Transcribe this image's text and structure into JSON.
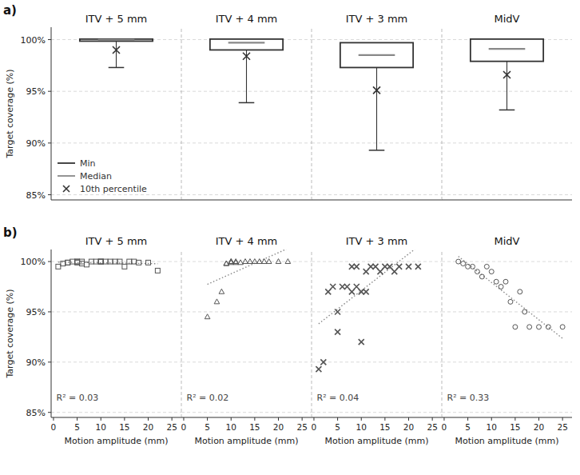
{
  "chart_data": [
    {
      "type": "box",
      "title": "a)",
      "categories": [
        "ITV + 5 mm",
        "ITV + 4 mm",
        "ITV + 3 mm",
        "MidV"
      ],
      "ylabel": "Target coverage (%)",
      "ylim": [
        84.5,
        101.2
      ],
      "yticks": [
        {
          "value": 85,
          "label": "85%"
        },
        {
          "value": 90,
          "label": "90%"
        },
        {
          "value": 95,
          "label": "95%"
        },
        {
          "value": 100,
          "label": "100%"
        }
      ],
      "grid": true,
      "legend": "lower left",
      "color": "#333333",
      "q1": [
        99.85,
        99.0,
        97.3,
        97.9
      ],
      "q3": [
        100.05,
        100.05,
        99.7,
        100.05
      ],
      "series": [
        {
          "name": "Min",
          "values": [
            97.3,
            93.9,
            89.3,
            93.2
          ],
          "color": "#333333"
        },
        {
          "name": "Median",
          "values": [
            99.97,
            99.7,
            98.5,
            99.1
          ],
          "color": "#888888"
        },
        {
          "name": "10th percentile",
          "values": [
            99.0,
            98.4,
            95.1,
            96.6
          ],
          "color": "#333333",
          "marker": "x"
        }
      ]
    },
    {
      "type": "scatter",
      "title": "b)",
      "categories": [
        "ITV + 5 mm",
        "ITV + 4 mm",
        "ITV + 3 mm",
        "MidV"
      ],
      "xlabel": "Motion amplitude (mm)",
      "ylabel": "Target coverage (%)",
      "xlim": [
        -0.5,
        27
      ],
      "xticks": [
        0,
        5,
        10,
        15,
        20,
        25
      ],
      "ylim": [
        84.5,
        101.2
      ],
      "yticks": [
        {
          "value": 85,
          "label": "85%"
        },
        {
          "value": 90,
          "label": "90%"
        },
        {
          "value": 95,
          "label": "95%"
        },
        {
          "value": 100,
          "label": "100%"
        }
      ],
      "grid": true,
      "color": "#333333",
      "series": [
        {
          "x": [
            1,
            2,
            3,
            3,
            4,
            5,
            5,
            5,
            6,
            6,
            7,
            8,
            9,
            10,
            10,
            10,
            11,
            12,
            13,
            14,
            15,
            16,
            17,
            18,
            20,
            22
          ],
          "values": [
            99.5,
            99.8,
            99.9,
            99.9,
            100.0,
            100.0,
            100.0,
            99.9,
            99.8,
            100.0,
            99.7,
            100.0,
            100.0,
            100.0,
            100.0,
            100.0,
            100.0,
            100.0,
            100.0,
            100.0,
            99.5,
            100.0,
            100.0,
            99.9,
            99.9,
            99.1
          ],
          "marker": "square",
          "color": "#555555",
          "annotation": "R² = 0.03",
          "trend": {
            "x": [
              1,
              22
            ],
            "values": [
              99.946,
              99.788
            ],
            "color": "#888888",
            "line_style": "dotted"
          }
        },
        {
          "x": [
            5,
            7,
            8,
            9,
            9,
            10,
            10,
            10,
            11,
            11,
            12,
            13,
            14,
            15,
            16,
            17,
            18,
            20,
            22
          ],
          "values": [
            94.5,
            96.0,
            97.0,
            99.8,
            99.8,
            100.0,
            100.0,
            99.9,
            99.9,
            100.0,
            99.9,
            100.0,
            100.0,
            100.0,
            100.0,
            100.0,
            100.0,
            100.0,
            100.0
          ],
          "marker": "triangle",
          "color": "#555555",
          "annotation": "R² = 0.02",
          "trend": {
            "x": [
              5,
              22
            ],
            "values": [
              97.736,
              101.305
            ],
            "color": "#888888",
            "line_style": "dotted"
          }
        },
        {
          "x": [
            1,
            2,
            3,
            4,
            5,
            5,
            6,
            7,
            8,
            8,
            9,
            9,
            10,
            10,
            11,
            11,
            12,
            13,
            14,
            15,
            16,
            17,
            18,
            20,
            22
          ],
          "values": [
            89.3,
            90.0,
            97.0,
            97.5,
            93.0,
            95.0,
            97.5,
            97.5,
            97.0,
            99.5,
            97.5,
            99.5,
            97.0,
            92.0,
            99.0,
            97.0,
            99.5,
            99.5,
            99.0,
            99.5,
            99.5,
            99.0,
            99.5,
            99.5,
            99.5
          ],
          "marker": "x",
          "color": "#555555",
          "annotation": "R² = 0.04",
          "trend": {
            "x": [
              1,
              22
            ],
            "values": [
              93.816,
              101.489
            ],
            "color": "#888888",
            "line_style": "dotted"
          }
        },
        {
          "x": [
            3,
            4,
            5,
            6,
            7,
            8,
            9,
            10,
            11,
            12,
            13,
            14,
            15,
            16,
            17,
            18,
            20,
            22,
            25
          ],
          "values": [
            100.0,
            99.8,
            99.5,
            99.5,
            99.0,
            98.5,
            99.5,
            99.0,
            98.0,
            97.5,
            98.0,
            96.0,
            93.5,
            97.0,
            95.0,
            93.5,
            93.5,
            93.5,
            93.5
          ],
          "marker": "circle",
          "color": "#555555",
          "annotation": "R² = 0.33",
          "trend": {
            "x": [
              3,
              25
            ],
            "values": [
              100.513,
              92.363
            ],
            "color": "#888888",
            "line_style": "dotted"
          }
        }
      ]
    }
  ]
}
